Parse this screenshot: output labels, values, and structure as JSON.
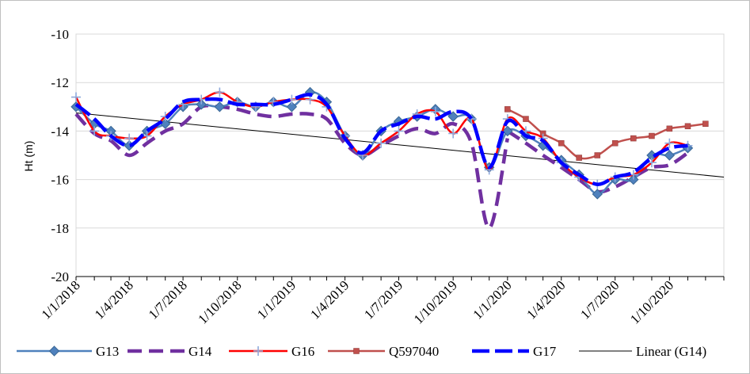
{
  "chart_data": {
    "type": "line",
    "ylabel": "Ht (m)",
    "ylim": [
      -20,
      -10
    ],
    "yticks": [
      -10,
      -12,
      -14,
      -16,
      -18,
      -20
    ],
    "x_tick_labels": [
      "1/1/2018",
      "1/4/2018",
      "1/7/2018",
      "1/10/2018",
      "1/1/2019",
      "1/4/2019",
      "1/7/2019",
      "1/10/2019",
      "1/1/2020",
      "1/4/2020",
      "1/7/2020",
      "1/10/2020"
    ],
    "xlim": [
      "2018-01-01",
      "2021-01-01"
    ],
    "grid": "horizontal",
    "legend": "bottom",
    "series": [
      {
        "name": "G13",
        "color": "#4f81bd",
        "style": "solid",
        "marker": "diamond",
        "points": [
          [
            "2018-01-01",
            -13.0
          ],
          [
            "2018-02-01",
            -13.7
          ],
          [
            "2018-03-01",
            -14.0
          ],
          [
            "2018-04-01",
            -14.6
          ],
          [
            "2018-05-01",
            -14.0
          ],
          [
            "2018-06-01",
            -13.7
          ],
          [
            "2018-07-01",
            -13.0
          ],
          [
            "2018-08-01",
            -12.9
          ],
          [
            "2018-09-01",
            -13.0
          ],
          [
            "2018-10-01",
            -12.8
          ],
          [
            "2018-11-01",
            -13.0
          ],
          [
            "2018-12-01",
            -12.8
          ],
          [
            "2019-01-01",
            -13.0
          ],
          [
            "2019-02-01",
            -12.4
          ],
          [
            "2019-03-01",
            -12.8
          ],
          [
            "2019-04-01",
            -14.2
          ],
          [
            "2019-05-01",
            -15.0
          ],
          [
            "2019-06-01",
            -14.0
          ],
          [
            "2019-07-01",
            -13.6
          ],
          [
            "2019-08-01",
            -13.4
          ],
          [
            "2019-09-01",
            -13.1
          ],
          [
            "2019-10-01",
            -13.4
          ],
          [
            "2019-11-01",
            -13.5
          ],
          [
            "2019-12-01",
            -15.5
          ],
          [
            "2020-01-01",
            -14.0
          ],
          [
            "2020-02-01",
            -14.2
          ],
          [
            "2020-03-01",
            -14.6
          ],
          [
            "2020-04-01",
            -15.2
          ],
          [
            "2020-05-01",
            -15.8
          ],
          [
            "2020-06-01",
            -16.6
          ],
          [
            "2020-07-01",
            -16.0
          ],
          [
            "2020-08-01",
            -16.0
          ],
          [
            "2020-09-01",
            -15.0
          ],
          [
            "2020-10-01",
            -15.0
          ],
          [
            "2020-11-01",
            -14.7
          ]
        ]
      },
      {
        "name": "G14",
        "color": "#7030a0",
        "style": "dash",
        "points": [
          [
            "2018-01-01",
            -13.3
          ],
          [
            "2018-02-01",
            -14.1
          ],
          [
            "2018-03-01",
            -14.4
          ],
          [
            "2018-04-01",
            -15.0
          ],
          [
            "2018-05-01",
            -14.5
          ],
          [
            "2018-06-01",
            -14.0
          ],
          [
            "2018-07-01",
            -13.7
          ],
          [
            "2018-08-01",
            -13.0
          ],
          [
            "2018-09-01",
            -13.0
          ],
          [
            "2018-10-01",
            -13.1
          ],
          [
            "2018-11-01",
            -13.3
          ],
          [
            "2018-12-01",
            -13.4
          ],
          [
            "2019-01-01",
            -13.3
          ],
          [
            "2019-02-01",
            -13.3
          ],
          [
            "2019-03-01",
            -13.5
          ],
          [
            "2019-04-01",
            -14.5
          ],
          [
            "2019-05-01",
            -15.0
          ],
          [
            "2019-06-01",
            -14.6
          ],
          [
            "2019-07-01",
            -14.2
          ],
          [
            "2019-08-01",
            -13.9
          ],
          [
            "2019-09-01",
            -14.1
          ],
          [
            "2019-10-01",
            -13.7
          ],
          [
            "2019-11-01",
            -14.5
          ],
          [
            "2019-12-01",
            -18.0
          ],
          [
            "2020-01-01",
            -14.3
          ]
        ],
        "points_2": [
          [
            "2020-01-01",
            -14.0
          ],
          [
            "2020-02-01",
            -14.5
          ],
          [
            "2020-03-01",
            -15.0
          ],
          [
            "2020-04-01",
            -15.5
          ],
          [
            "2020-05-01",
            -16.0
          ],
          [
            "2020-06-01",
            -16.5
          ],
          [
            "2020-07-01",
            -16.3
          ],
          [
            "2020-08-01",
            -15.9
          ],
          [
            "2020-09-01",
            -15.5
          ],
          [
            "2020-10-01",
            -15.4
          ],
          [
            "2020-11-01",
            -14.9
          ]
        ]
      },
      {
        "name": "G16",
        "color": "#ff0000",
        "style": "solid",
        "marker": "plus",
        "points": [
          [
            "2018-01-01",
            -12.6
          ],
          [
            "2018-02-01",
            -14.0
          ],
          [
            "2018-03-01",
            -14.2
          ],
          [
            "2018-04-01",
            -14.3
          ],
          [
            "2018-05-01",
            -14.2
          ],
          [
            "2018-06-01",
            -13.4
          ],
          [
            "2018-07-01",
            -12.9
          ],
          [
            "2018-08-01",
            -12.7
          ],
          [
            "2018-09-01",
            -12.4
          ],
          [
            "2018-10-01",
            -12.8
          ],
          [
            "2018-11-01",
            -13.0
          ],
          [
            "2018-12-01",
            -12.8
          ],
          [
            "2019-01-01",
            -12.7
          ],
          [
            "2019-02-01",
            -12.7
          ],
          [
            "2019-03-01",
            -13.0
          ],
          [
            "2019-04-01",
            -14.2
          ],
          [
            "2019-05-01",
            -15.0
          ],
          [
            "2019-06-01",
            -14.5
          ],
          [
            "2019-07-01",
            -14.0
          ],
          [
            "2019-08-01",
            -13.3
          ],
          [
            "2019-09-01",
            -13.2
          ],
          [
            "2019-10-01",
            -14.1
          ],
          [
            "2019-11-01",
            -13.5
          ],
          [
            "2019-12-01",
            -15.6
          ],
          [
            "2020-01-01",
            -13.5
          ],
          [
            "2020-02-01",
            -14.0
          ],
          [
            "2020-03-01",
            -14.3
          ],
          [
            "2020-04-01",
            -15.3
          ],
          [
            "2020-05-01",
            -15.9
          ],
          [
            "2020-06-01",
            -16.2
          ],
          [
            "2020-07-01",
            -15.9
          ],
          [
            "2020-08-01",
            -15.8
          ],
          [
            "2020-09-01",
            -15.3
          ],
          [
            "2020-10-01",
            -14.5
          ],
          [
            "2020-11-01",
            -14.6
          ]
        ]
      },
      {
        "name": "Q597040",
        "color": "#c0504d",
        "style": "solid",
        "marker": "square",
        "points": [
          [
            "2020-01-01",
            -13.1
          ],
          [
            "2020-02-01",
            -13.5
          ],
          [
            "2020-03-01",
            -14.1
          ],
          [
            "2020-04-01",
            -14.5
          ],
          [
            "2020-05-01",
            -15.1
          ],
          [
            "2020-06-01",
            -15.0
          ],
          [
            "2020-07-01",
            -14.5
          ],
          [
            "2020-08-01",
            -14.3
          ],
          [
            "2020-09-01",
            -14.2
          ],
          [
            "2020-10-01",
            -13.9
          ],
          [
            "2020-11-01",
            -13.8
          ],
          [
            "2020-12-01",
            -13.7
          ]
        ]
      },
      {
        "name": "G17",
        "color": "#0000ff",
        "style": "dash",
        "points": [
          [
            "2018-01-01",
            -12.9
          ],
          [
            "2018-02-01",
            -13.5
          ],
          [
            "2018-03-01",
            -14.2
          ],
          [
            "2018-04-01",
            -14.6
          ],
          [
            "2018-05-01",
            -14.0
          ],
          [
            "2018-06-01",
            -13.5
          ],
          [
            "2018-07-01",
            -12.8
          ],
          [
            "2018-08-01",
            -12.7
          ],
          [
            "2018-09-01",
            -12.7
          ],
          [
            "2018-10-01",
            -12.9
          ],
          [
            "2018-11-01",
            -12.9
          ],
          [
            "2018-12-01",
            -12.9
          ],
          [
            "2019-01-01",
            -12.7
          ],
          [
            "2019-02-01",
            -12.5
          ],
          [
            "2019-03-01",
            -12.9
          ],
          [
            "2019-04-01",
            -14.3
          ],
          [
            "2019-05-01",
            -14.9
          ],
          [
            "2019-06-01",
            -14.0
          ],
          [
            "2019-07-01",
            -13.7
          ],
          [
            "2019-08-01",
            -13.4
          ],
          [
            "2019-09-01",
            -13.5
          ],
          [
            "2019-10-01",
            -13.2
          ],
          [
            "2019-11-01",
            -13.5
          ],
          [
            "2019-12-01",
            -15.5
          ],
          [
            "2020-01-01",
            -13.6
          ],
          [
            "2020-02-01",
            -14.2
          ],
          [
            "2020-03-01",
            -14.4
          ],
          [
            "2020-04-01",
            -15.3
          ],
          [
            "2020-05-01",
            -15.8
          ],
          [
            "2020-06-01",
            -16.2
          ],
          [
            "2020-07-01",
            -15.9
          ],
          [
            "2020-08-01",
            -15.7
          ],
          [
            "2020-09-01",
            -15.1
          ],
          [
            "2020-10-01",
            -14.7
          ],
          [
            "2020-11-01",
            -14.6
          ]
        ]
      },
      {
        "name": "Linear (G14)",
        "color": "#000000",
        "style": "thin",
        "points": [
          [
            "2018-01-01",
            -13.25
          ],
          [
            "2021-01-01",
            -15.9
          ]
        ]
      }
    ]
  }
}
